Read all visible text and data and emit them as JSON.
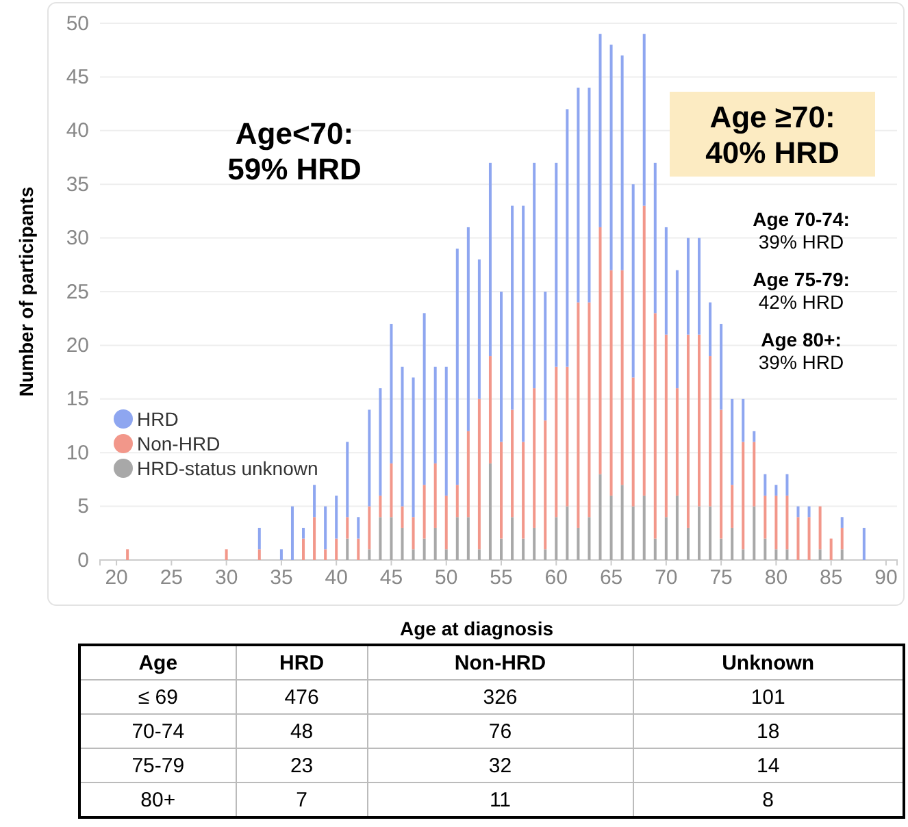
{
  "chart_data": [
    {
      "type": "bar",
      "stacked": true,
      "xlabel": "Age at diagnosis",
      "ylabel": "Number of participants",
      "x": [
        21,
        30,
        33,
        35,
        36,
        37,
        38,
        39,
        40,
        41,
        42,
        43,
        44,
        45,
        46,
        47,
        48,
        49,
        50,
        51,
        52,
        53,
        54,
        55,
        56,
        57,
        58,
        59,
        60,
        61,
        62,
        63,
        64,
        65,
        66,
        67,
        68,
        69,
        70,
        71,
        72,
        73,
        74,
        75,
        76,
        77,
        78,
        79,
        80,
        81,
        82,
        83,
        84,
        85,
        86,
        88
      ],
      "series": [
        {
          "name": "HRD-status unknown",
          "color": "#a8a8a8",
          "values": [
            0,
            0,
            0,
            0,
            0,
            0,
            0,
            0,
            0,
            2,
            0,
            1,
            4,
            4,
            3,
            1,
            2,
            3,
            1,
            4,
            4,
            1,
            9,
            2,
            4,
            2,
            3,
            1,
            4,
            5,
            3,
            4,
            8,
            6,
            7,
            5,
            6,
            2,
            4,
            6,
            3,
            5,
            5,
            2,
            3,
            1,
            5,
            2,
            1,
            1,
            0,
            0,
            1,
            0,
            1,
            0
          ]
        },
        {
          "name": "Non-HRD",
          "color": "#f2978a",
          "values": [
            1,
            1,
            1,
            0,
            0,
            2,
            4,
            1,
            2,
            2,
            2,
            4,
            2,
            5,
            2,
            3,
            5,
            6,
            5,
            3,
            8,
            14,
            10,
            9,
            10,
            9,
            13,
            12,
            14,
            13,
            21,
            20,
            23,
            21,
            20,
            12,
            27,
            21,
            17,
            10,
            18,
            16,
            14,
            12,
            4,
            10,
            6,
            4,
            5,
            5,
            4,
            4,
            4,
            2,
            2,
            0
          ]
        },
        {
          "name": "HRD",
          "color": "#8ea6f0",
          "values": [
            0,
            0,
            2,
            1,
            5,
            1,
            3,
            4,
            4,
            7,
            2,
            9,
            10,
            13,
            13,
            13,
            16,
            9,
            12,
            22,
            19,
            13,
            18,
            14,
            19,
            22,
            21,
            12,
            19,
            24,
            20,
            20,
            18,
            21,
            20,
            18,
            16,
            14,
            10,
            11,
            9,
            9,
            5,
            8,
            8,
            4,
            1,
            2,
            1,
            2,
            1,
            1,
            0,
            0,
            1,
            3
          ]
        }
      ],
      "xlim": [
        18.5,
        91
      ],
      "xticks": [
        20,
        25,
        30,
        35,
        40,
        45,
        50,
        55,
        60,
        65,
        70,
        75,
        80,
        85,
        90
      ],
      "ylim": [
        0,
        50
      ],
      "yticks": [
        0,
        5,
        10,
        15,
        20,
        25,
        30,
        35,
        40,
        45,
        50
      ],
      "grid": "y",
      "legend": "left",
      "annotations": [
        "Age<70:\n59% HRD",
        "Age ≥70:\n40% HRD",
        "Age 70-74:\n39% HRD",
        "Age 75-79:\n42% HRD",
        "Age 80+:\n39% HRD"
      ]
    },
    {
      "type": "other",
      "data_labels": true,
      "xlabel": "Age",
      "categories": [
        "≤ 69",
        "70-74",
        "75-79",
        "80+"
      ],
      "series": [
        {
          "name": "HRD",
          "values": [
            476,
            48,
            23,
            7
          ]
        },
        {
          "name": "Non-HRD",
          "values": [
            326,
            76,
            32,
            11
          ]
        },
        {
          "name": "Unknown",
          "values": [
            101,
            18,
            14,
            8
          ]
        }
      ]
    }
  ]
}
